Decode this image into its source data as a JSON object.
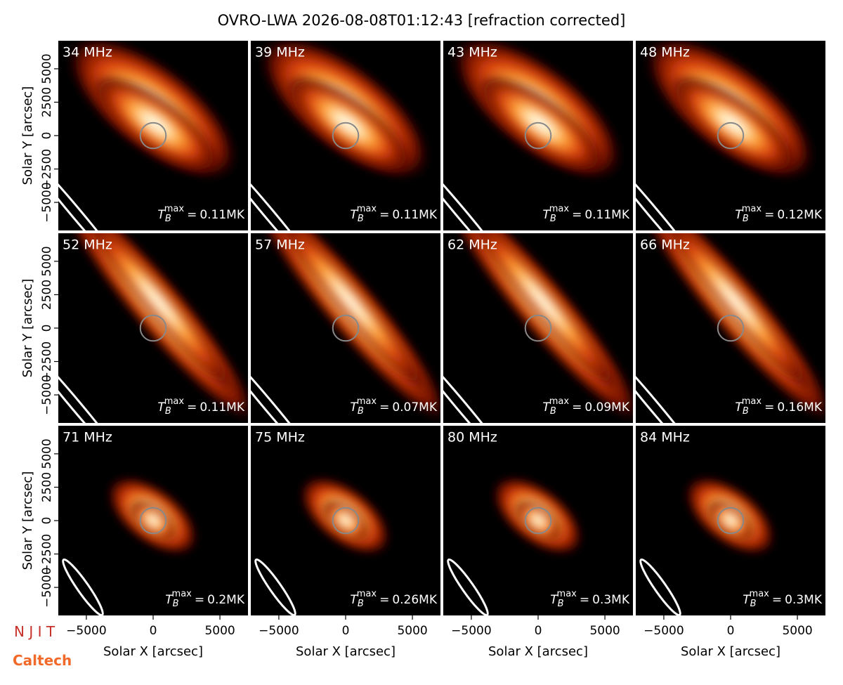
{
  "title": "OVRO-LWA 2026-08-08T01:12:43 [refraction corrected]",
  "logos": [
    "N J I T",
    "Caltech"
  ],
  "chart_data": [
    {
      "type": "image",
      "title": "34 MHz",
      "xlim": [
        -7100,
        7100
      ],
      "ylim": [
        -7100,
        7100
      ],
      "ylabel": "Solar Y [arcsec]",
      "yticks": [
        {
          "value": -5000,
          "label": "−5000"
        },
        {
          "value": -2500,
          "label": "−2500"
        },
        0,
        2500,
        5000
      ],
      "annotation": {
        "symbol": "T",
        "sub": "B",
        "sup": "max",
        "relation": "=",
        "value": 0.11,
        "unit": "MK"
      }
    },
    {
      "type": "image",
      "title": "39 MHz",
      "xlim": [
        -7100,
        7100
      ],
      "ylim": [
        -7100,
        7100
      ],
      "annotation": {
        "symbol": "T",
        "sub": "B",
        "sup": "max",
        "relation": "=",
        "value": 0.11,
        "unit": "MK"
      }
    },
    {
      "type": "image",
      "title": "43 MHz",
      "xlim": [
        -7100,
        7100
      ],
      "ylim": [
        -7100,
        7100
      ],
      "annotation": {
        "symbol": "T",
        "sub": "B",
        "sup": "max",
        "relation": "=",
        "value": 0.11,
        "unit": "MK"
      }
    },
    {
      "type": "image",
      "title": "48 MHz",
      "xlim": [
        -7100,
        7100
      ],
      "ylim": [
        -7100,
        7100
      ],
      "annotation": {
        "symbol": "T",
        "sub": "B",
        "sup": "max",
        "relation": "=",
        "value": 0.12,
        "unit": "MK"
      }
    },
    {
      "type": "image",
      "title": "52 MHz",
      "xlim": [
        -7100,
        7100
      ],
      "ylim": [
        -7100,
        7100
      ],
      "ylabel": "Solar Y [arcsec]",
      "yticks": [
        {
          "value": -5000,
          "label": "−5000"
        },
        {
          "value": -2500,
          "label": "−2500"
        },
        0,
        2500,
        5000
      ],
      "annotation": {
        "symbol": "T",
        "sub": "B",
        "sup": "max",
        "relation": "=",
        "value": 0.11,
        "unit": "MK"
      }
    },
    {
      "type": "image",
      "title": "57 MHz",
      "xlim": [
        -7100,
        7100
      ],
      "ylim": [
        -7100,
        7100
      ],
      "annotation": {
        "symbol": "T",
        "sub": "B",
        "sup": "max",
        "relation": "=",
        "value": 0.07,
        "unit": "MK"
      }
    },
    {
      "type": "image",
      "title": "62 MHz",
      "xlim": [
        -7100,
        7100
      ],
      "ylim": [
        -7100,
        7100
      ],
      "annotation": {
        "symbol": "T",
        "sub": "B",
        "sup": "max",
        "relation": "=",
        "value": 0.09,
        "unit": "MK"
      }
    },
    {
      "type": "image",
      "title": "66 MHz",
      "xlim": [
        -7100,
        7100
      ],
      "ylim": [
        -7100,
        7100
      ],
      "annotation": {
        "symbol": "T",
        "sub": "B",
        "sup": "max",
        "relation": "=",
        "value": 0.16,
        "unit": "MK"
      }
    },
    {
      "type": "image",
      "title": "71 MHz",
      "xlim": [
        -7100,
        7100
      ],
      "ylim": [
        -7100,
        7100
      ],
      "ylabel": "Solar Y [arcsec]",
      "yticks": [
        {
          "value": -5000,
          "label": "−5000"
        },
        {
          "value": -2500,
          "label": "−2500"
        },
        0,
        2500,
        5000
      ],
      "xlabel": "Solar X [arcsec]",
      "xticks": [
        {
          "value": -5000,
          "label": "−5000"
        },
        0,
        5000
      ],
      "annotation": {
        "symbol": "T",
        "sub": "B",
        "sup": "max",
        "relation": "=",
        "value": 0.2,
        "unit": "MK"
      }
    },
    {
      "type": "image",
      "title": "75 MHz",
      "xlim": [
        -7100,
        7100
      ],
      "ylim": [
        -7100,
        7100
      ],
      "xlabel": "Solar X [arcsec]",
      "xticks": [
        {
          "value": -5000,
          "label": "−5000"
        },
        0,
        5000
      ],
      "annotation": {
        "symbol": "T",
        "sub": "B",
        "sup": "max",
        "relation": "=",
        "value": 0.26,
        "unit": "MK"
      }
    },
    {
      "type": "image",
      "title": "80 MHz",
      "xlim": [
        -7100,
        7100
      ],
      "ylim": [
        -7100,
        7100
      ],
      "xlabel": "Solar X [arcsec]",
      "xticks": [
        {
          "value": -5000,
          "label": "−5000"
        },
        0,
        5000
      ],
      "annotation": {
        "symbol": "T",
        "sub": "B",
        "sup": "max",
        "relation": "=",
        "value": 0.3,
        "unit": "MK"
      }
    },
    {
      "type": "image",
      "title": "84 MHz",
      "xlim": [
        -7100,
        7100
      ],
      "ylim": [
        -7100,
        7100
      ],
      "xlabel": "Solar X [arcsec]",
      "xticks": [
        {
          "value": -5000,
          "label": "−5000"
        },
        0,
        5000
      ],
      "annotation": {
        "symbol": "T",
        "sub": "B",
        "sup": "max",
        "relation": "=",
        "value": 0.3,
        "unit": "MK"
      }
    }
  ]
}
